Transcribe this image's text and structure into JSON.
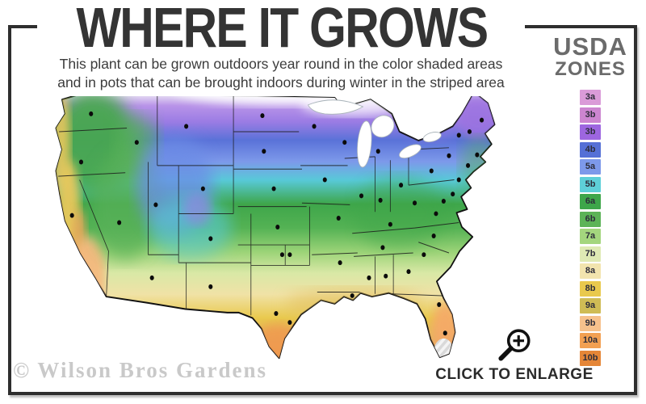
{
  "header": {
    "title": "WHERE IT GROWS",
    "subtitle_lines": [
      "This plant can be grown outdoors year round in the color shaded areas",
      "and in pots that can be brought indoors during winter in the striped area"
    ]
  },
  "legend": {
    "title_line1": "USDA",
    "title_line2": "ZONES",
    "zones": [
      {
        "label": "3a",
        "color": "#da9bd8"
      },
      {
        "label": "3b",
        "color": "#cc85d0"
      },
      {
        "label": "3b",
        "color": "#9d66e0"
      },
      {
        "label": "4b",
        "color": "#5570d6"
      },
      {
        "label": "5a",
        "color": "#7d99ea"
      },
      {
        "label": "5b",
        "color": "#5ecfd8"
      },
      {
        "label": "6a",
        "color": "#3ea64a"
      },
      {
        "label": "6b",
        "color": "#5cb357"
      },
      {
        "label": "7a",
        "color": "#a4d67e"
      },
      {
        "label": "7b",
        "color": "#dfeab4"
      },
      {
        "label": "8a",
        "color": "#f2e4ae"
      },
      {
        "label": "8b",
        "color": "#e9c94d"
      },
      {
        "label": "9a",
        "color": "#cfbc55"
      },
      {
        "label": "9b",
        "color": "#f6c18c"
      },
      {
        "label": "10a",
        "color": "#f2a052"
      },
      {
        "label": "10b",
        "color": "#e58637"
      }
    ]
  },
  "map": {
    "dot_color": "#0b0b0b",
    "city_dots": [
      [
        75,
        38
      ],
      [
        62,
        92
      ],
      [
        50,
        152
      ],
      [
        112,
        160
      ],
      [
        135,
        70
      ],
      [
        200,
        52
      ],
      [
        222,
        122
      ],
      [
        232,
        178
      ],
      [
        232,
        232
      ],
      [
        155,
        222
      ],
      [
        160,
        140
      ],
      [
        300,
        40
      ],
      [
        302,
        80
      ],
      [
        315,
        122
      ],
      [
        320,
        165
      ],
      [
        326,
        196
      ],
      [
        336,
        196
      ],
      [
        318,
        262
      ],
      [
        336,
        272
      ],
      [
        368,
        52
      ],
      [
        382,
        112
      ],
      [
        400,
        155
      ],
      [
        402,
        205
      ],
      [
        418,
        242
      ],
      [
        408,
        70
      ],
      [
        430,
        130
      ],
      [
        452,
        80
      ],
      [
        455,
        135
      ],
      [
        482,
        118
      ],
      [
        468,
        162
      ],
      [
        458,
        188
      ],
      [
        440,
        222
      ],
      [
        462,
        220
      ],
      [
        492,
        215
      ],
      [
        532,
        252
      ],
      [
        540,
        284
      ],
      [
        512,
        196
      ],
      [
        525,
        175
      ],
      [
        528,
        150
      ],
      [
        500,
        138
      ],
      [
        522,
        102
      ],
      [
        545,
        85
      ],
      [
        588,
        45
      ],
      [
        558,
        62
      ],
      [
        572,
        58
      ],
      [
        582,
        84
      ],
      [
        570,
        96
      ],
      [
        558,
        112
      ],
      [
        550,
        128
      ],
      [
        538,
        136
      ]
    ]
  },
  "footer": {
    "watermark": "© Wilson Bros Gardens",
    "enlarge_label": "CLICK TO ENLARGE"
  }
}
